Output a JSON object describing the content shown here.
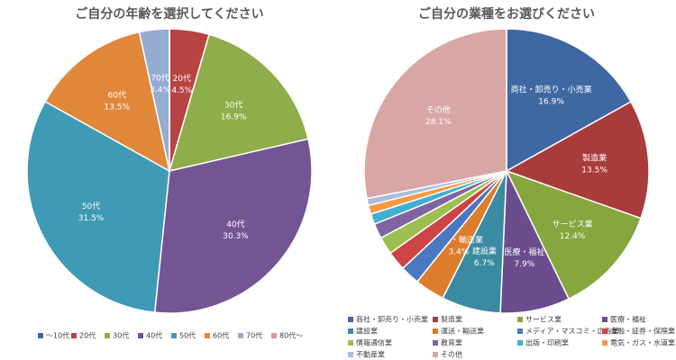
{
  "chart_data": [
    {
      "type": "pie",
      "title": "ご自分の年齢を選択してください",
      "categories": [
        "～10代",
        "20代",
        "30代",
        "40代",
        "50代",
        "60代",
        "70代",
        "80代～"
      ],
      "values": [
        0,
        4.5,
        16.9,
        30.3,
        31.5,
        13.5,
        3.4,
        0
      ],
      "value_labels": [
        null,
        "4.5%",
        "16.9%",
        "30.3%",
        "31.5%",
        "13.5%",
        "3.4%",
        null
      ],
      "colors": [
        "#3f68a2",
        "#b94343",
        "#8fad4a",
        "#735594",
        "#3f9ab5",
        "#e0873a",
        "#94abd2",
        "#d79a9a"
      ],
      "legend": "bottom"
    },
    {
      "type": "pie",
      "title": "ご自分の業種をお選びください",
      "categories": [
        "商社・卸売り・小売業",
        "製造業",
        "サービス業",
        "医療・福祉",
        "建設業",
        "運送・輸送業",
        "メディア・マスコミ・広告業",
        "金融・証券・保険業",
        "情報通信業",
        "教育業",
        "出版・印刷業",
        "電気・ガス・水道業",
        "不動産業",
        "その他"
      ],
      "values": [
        16.9,
        13.5,
        12.4,
        7.9,
        6.7,
        3.4,
        2.2,
        2.2,
        2.0,
        1.7,
        1.2,
        1.0,
        0.8,
        28.1
      ],
      "value_labels": [
        "16.9%",
        "13.5%",
        "12.4%",
        "7.9%",
        "6.7%",
        "3.4%",
        null,
        null,
        null,
        null,
        null,
        null,
        null,
        "28.1%"
      ],
      "colors": [
        "#3f68a2",
        "#a83b3b",
        "#86a63e",
        "#6a4d8c",
        "#3a8ba2",
        "#dc7d2c",
        "#4a78c0",
        "#cc4444",
        "#9bc050",
        "#8064a2",
        "#40b0d0",
        "#f59a40",
        "#a8bde0",
        "#d9a6a6"
      ],
      "legend": "bottom"
    }
  ]
}
